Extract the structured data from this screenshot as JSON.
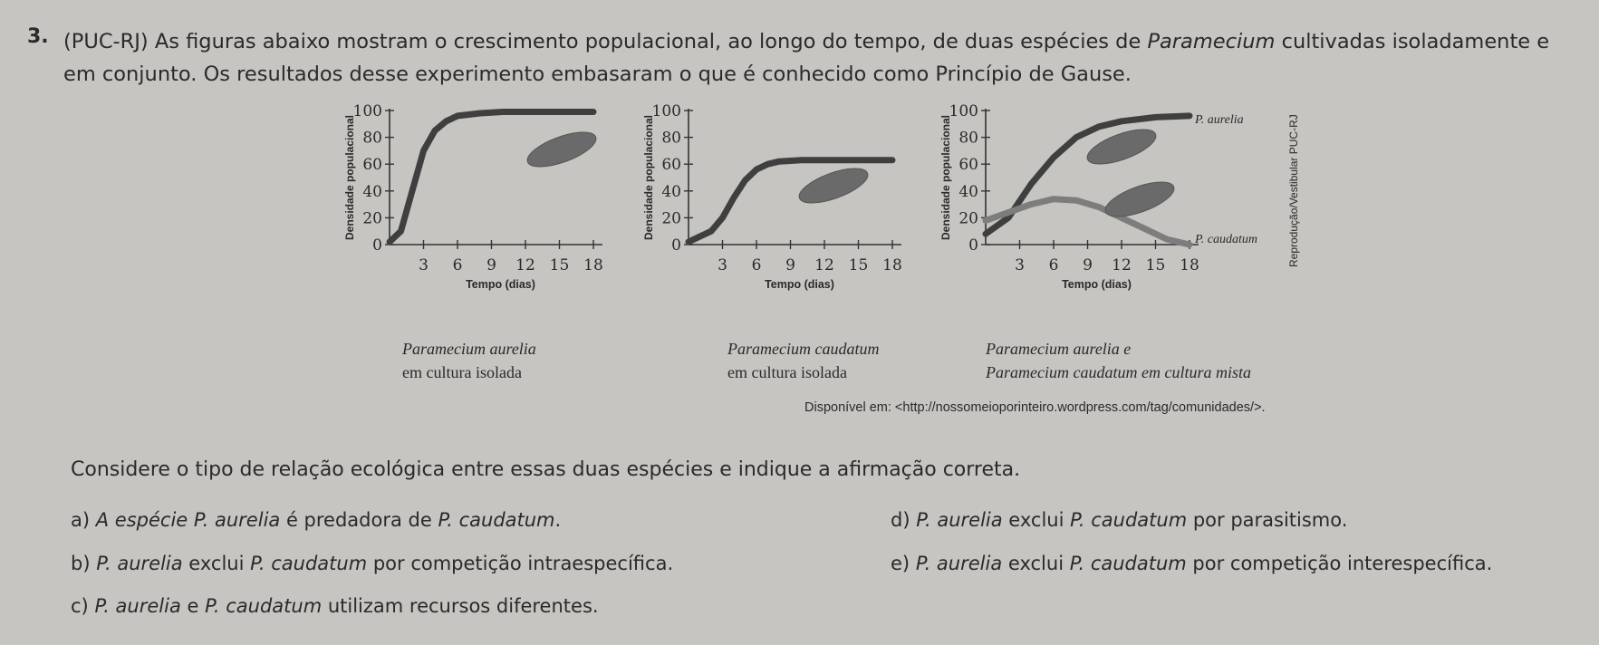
{
  "question": {
    "number": "3.",
    "text_before": "(PUC-RJ) As figuras abaixo mostram o crescimento populacional, ao longo do tempo, de duas espécies de ",
    "text_italic": "Paramecium",
    "text_after": " cultivadas isoladamente e em conjunto. Os resultados desse experimento embasaram o que é conhecido como Princípio de Gause."
  },
  "chart_data": [
    {
      "type": "line",
      "ylabel": "Densidade populacional",
      "xlabel": "Tempo (dias)",
      "xticks": [
        3,
        6,
        9,
        12,
        15,
        18
      ],
      "yticks": [
        0,
        20,
        40,
        60,
        80,
        100
      ],
      "series": [
        {
          "x": [
            0,
            1,
            2,
            3,
            4,
            5,
            6,
            8,
            10,
            12,
            15,
            18
          ],
          "y": [
            2,
            10,
            40,
            70,
            85,
            92,
            96,
            98,
            99,
            99,
            99,
            99
          ]
        }
      ],
      "caption_line1": "Paramecium aurelia",
      "caption_line2": "em cultura isolada"
    },
    {
      "type": "line",
      "ylabel": "Densidade populacional",
      "xlabel": "Tempo (dias)",
      "xticks": [
        3,
        6,
        9,
        12,
        15,
        18
      ],
      "yticks": [
        0,
        20,
        40,
        60,
        80,
        100
      ],
      "series": [
        {
          "x": [
            0,
            2,
            3,
            4,
            5,
            6,
            7,
            8,
            10,
            12,
            15,
            18
          ],
          "y": [
            2,
            10,
            20,
            35,
            48,
            56,
            60,
            62,
            63,
            63,
            63,
            63
          ]
        }
      ],
      "caption_line1": "Paramecium caudatum",
      "caption_line2": "em cultura isolada"
    },
    {
      "type": "line",
      "ylabel": "Densidade populacional",
      "xlabel": "Tempo (dias)",
      "xticks": [
        3,
        6,
        9,
        12,
        15,
        18
      ],
      "yticks": [
        0,
        20,
        40,
        60,
        80,
        100
      ],
      "series": [
        {
          "name": "P. aurelia",
          "x": [
            0,
            2,
            4,
            6,
            8,
            10,
            12,
            15,
            18
          ],
          "y": [
            8,
            20,
            45,
            65,
            80,
            88,
            92,
            95,
            96
          ]
        },
        {
          "name": "P. caudatum",
          "x": [
            0,
            2,
            4,
            6,
            8,
            10,
            12,
            14,
            16,
            18
          ],
          "y": [
            18,
            24,
            30,
            34,
            33,
            28,
            20,
            12,
            4,
            0
          ]
        }
      ],
      "caption_line1": "Paramecium aurelia e",
      "caption_line2": "Paramecium caudatum em cultura mista"
    }
  ],
  "source": "Disponível em: <http://nossomeioporinteiro.wordpress.com/tag/comunidades/>.",
  "side_text": "Reprodução/Vestibular PUC-RJ",
  "stem": "Considere o tipo de relação ecológica entre essas duas espécies e indique a afirmação correta.",
  "options": {
    "a": {
      "letter": "a)",
      "it1": "A espécie P. aurelia",
      "rest": " é predadora de ",
      "it2": "P. caudatum",
      "end": "."
    },
    "b": {
      "letter": "b)",
      "it1": "P. aurelia",
      "rest": " exclui ",
      "it2": "P. caudatum",
      "end": " por competição intraespecífica."
    },
    "c": {
      "letter": "c)",
      "it1": "P. aurelia",
      "rest": " e ",
      "it2": "P. caudatum",
      "end": " utilizam recursos diferentes."
    },
    "d": {
      "letter": "d)",
      "it1": "P. aurelia",
      "rest": " exclui ",
      "it2": "P. caudatum",
      "end": " por parasitismo."
    },
    "e": {
      "letter": "e)",
      "it1": "P. aurelia",
      "rest": " exclui ",
      "it2": "P. caudatum",
      "end": " por competição interespecífica."
    }
  }
}
